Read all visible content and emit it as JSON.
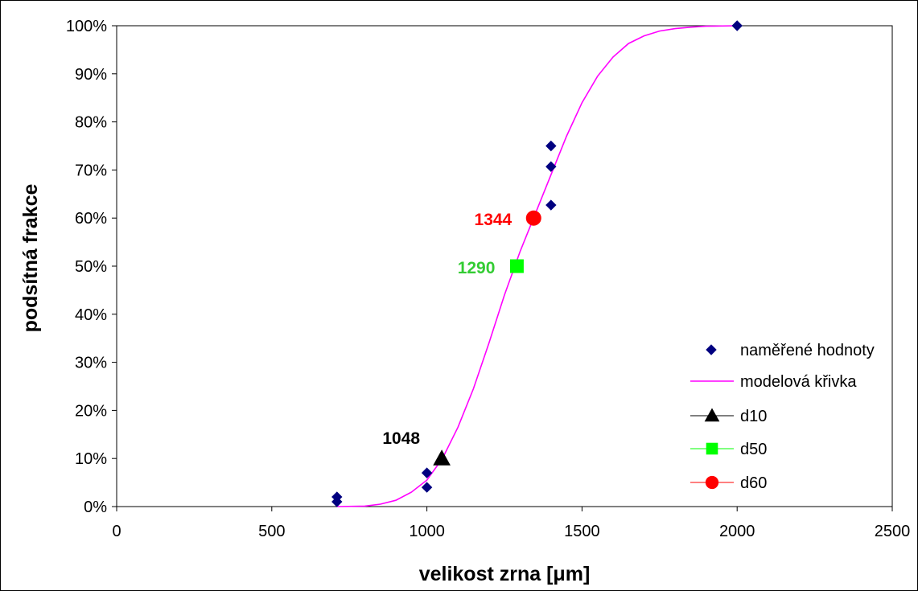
{
  "chart_data": {
    "type": "scatter",
    "title": "",
    "xlabel": "velikost zrna [μm]",
    "ylabel": "podsítná frakce",
    "xlim": [
      0,
      2500
    ],
    "ylim": [
      0,
      100
    ],
    "x_ticks": [
      0,
      500,
      1000,
      1500,
      2000,
      2500
    ],
    "x_tick_labels": [
      "0",
      "500",
      "1000",
      "1500",
      "2000",
      "2500"
    ],
    "y_ticks": [
      0,
      10,
      20,
      30,
      40,
      50,
      60,
      70,
      80,
      90,
      100
    ],
    "y_tick_labels": [
      "0%",
      "10%",
      "20%",
      "30%",
      "40%",
      "50%",
      "60%",
      "70%",
      "80%",
      "90%",
      "100%"
    ],
    "grid": false,
    "legend_position": "right",
    "series": [
      {
        "name": "naměřené hodnoty",
        "kind": "markers",
        "marker": "diamond",
        "color": "#000080",
        "points": [
          [
            710,
            1
          ],
          [
            710,
            2
          ],
          [
            1000,
            4
          ],
          [
            1000,
            7
          ],
          [
            1400,
            62.7
          ],
          [
            1400,
            70.7
          ],
          [
            1400,
            75
          ],
          [
            2000,
            100
          ]
        ]
      },
      {
        "name": "modelová křivka",
        "kind": "line",
        "color": "#ff00ff",
        "points": [
          [
            710,
            0
          ],
          [
            800,
            0.1
          ],
          [
            850,
            0.5
          ],
          [
            900,
            1.3
          ],
          [
            950,
            3
          ],
          [
            1000,
            5.5
          ],
          [
            1050,
            10
          ],
          [
            1100,
            16.5
          ],
          [
            1150,
            24.5
          ],
          [
            1200,
            34
          ],
          [
            1250,
            44
          ],
          [
            1300,
            53
          ],
          [
            1350,
            61
          ],
          [
            1400,
            69
          ],
          [
            1450,
            77
          ],
          [
            1500,
            84
          ],
          [
            1550,
            89.5
          ],
          [
            1600,
            93.5
          ],
          [
            1650,
            96.3
          ],
          [
            1700,
            97.9
          ],
          [
            1750,
            98.9
          ],
          [
            1800,
            99.4
          ],
          [
            1850,
            99.7
          ],
          [
            1900,
            99.9
          ],
          [
            2000,
            100
          ]
        ]
      },
      {
        "name": "d10",
        "kind": "marker",
        "marker": "triangle",
        "color": "#000000",
        "points": [
          [
            1048,
            10
          ]
        ],
        "label": "1048"
      },
      {
        "name": "d50",
        "kind": "marker",
        "marker": "square",
        "color": "#00ff00",
        "label_color": "#33cc33",
        "points": [
          [
            1290,
            50
          ]
        ],
        "label": "1290"
      },
      {
        "name": "d60",
        "kind": "marker",
        "marker": "circle",
        "color": "#ff0000",
        "points": [
          [
            1344,
            60
          ]
        ],
        "label": "1344"
      }
    ]
  }
}
